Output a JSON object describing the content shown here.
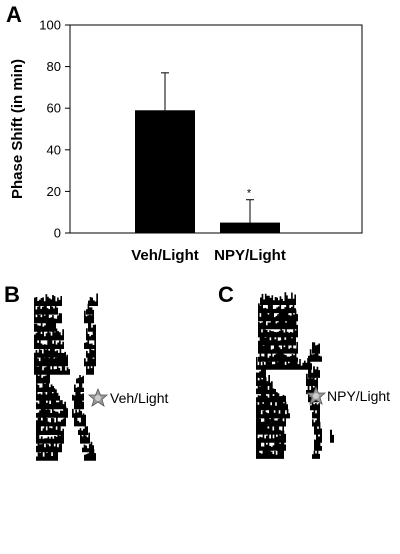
{
  "panels": {
    "a": "A",
    "b": "B",
    "c": "C"
  },
  "chart_data": {
    "type": "bar",
    "categories": [
      "Veh/Light",
      "NPY/Light"
    ],
    "values": [
      59,
      5
    ],
    "errors": [
      18,
      11
    ],
    "significance": [
      "",
      "*"
    ],
    "title": "",
    "xlabel": "",
    "ylabel": "Phase Shift (in min)",
    "ylim": [
      0,
      100
    ],
    "yticks": [
      0,
      20,
      40,
      60,
      80,
      100
    ],
    "bar_color": "#000000",
    "grid": false,
    "legend": "none"
  },
  "actograms": {
    "veh": {
      "label": "Veh/Light",
      "icon": "light-pulse-icon",
      "pulse_row": 8
    },
    "npy": {
      "label": "NPY/Light",
      "icon": "light-pulse-icon",
      "pulse_row": 8
    }
  }
}
